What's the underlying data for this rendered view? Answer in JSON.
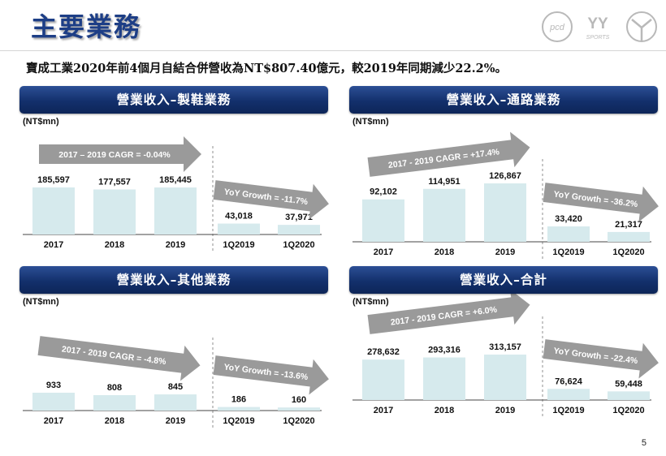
{
  "title": "主要業務",
  "headline": "寶成工業2020年前4個月自結合併營收為NT$807.40億元，較2019年同期減少22.2%。",
  "page_number": "5",
  "logos": {
    "left_text": "pcd",
    "right_text": "YY",
    "right_subtext": "SPORTS"
  },
  "colors": {
    "bar": "#d6eaed",
    "arrow": "#9a9a9a",
    "banner": "#1a3a7a",
    "title": "#1d3e86"
  },
  "chart_data": [
    {
      "type": "bar",
      "title": "營業收入–製鞋業務",
      "unit": "(NT$mn)",
      "categories": [
        "2017",
        "2018",
        "2019",
        "1Q2019",
        "1Q2020"
      ],
      "values": [
        185597,
        177557,
        185445,
        43018,
        37971
      ],
      "labels": [
        "185,597",
        "177,557",
        "185,445",
        "43,018",
        "37,971"
      ],
      "cagr_label": "2017 – 2019 CAGR = -0.04%",
      "yoy_label": "YoY Growth = -11.7%",
      "grid": false,
      "legend": "none"
    },
    {
      "type": "bar",
      "title": "營業收入–通路業務",
      "unit": "(NT$mn)",
      "categories": [
        "2017",
        "2018",
        "2019",
        "1Q2019",
        "1Q2020"
      ],
      "values": [
        92102,
        114951,
        126867,
        33420,
        21317
      ],
      "labels": [
        "92,102",
        "114,951",
        "126,867",
        "33,420",
        "21,317"
      ],
      "cagr_label": "2017 - 2019 CAGR = +17.4%",
      "yoy_label": "YoY Growth = -36.2%",
      "grid": false,
      "legend": "none"
    },
    {
      "type": "bar",
      "title": "營業收入–其他業務",
      "unit": "(NT$mn)",
      "categories": [
        "2017",
        "2018",
        "2019",
        "1Q2019",
        "1Q2020"
      ],
      "values": [
        933,
        808,
        845,
        186,
        160
      ],
      "labels": [
        "933",
        "808",
        "845",
        "186",
        "160"
      ],
      "cagr_label": "2017 - 2019 CAGR = -4.8%",
      "yoy_label": "YoY Growth = -13.6%",
      "grid": false,
      "legend": "none"
    },
    {
      "type": "bar",
      "title": "營業收入–合計",
      "unit": "(NT$mn)",
      "categories": [
        "2017",
        "2018",
        "2019",
        "1Q2019",
        "1Q2020"
      ],
      "values": [
        278632,
        293316,
        313157,
        76624,
        59448
      ],
      "labels": [
        "278,632",
        "293,316",
        "313,157",
        "76,624",
        "59,448"
      ],
      "cagr_label": "2017 - 2019 CAGR = +6.0%",
      "yoy_label": "YoY Growth = -22.4%",
      "grid": false,
      "legend": "none"
    }
  ]
}
